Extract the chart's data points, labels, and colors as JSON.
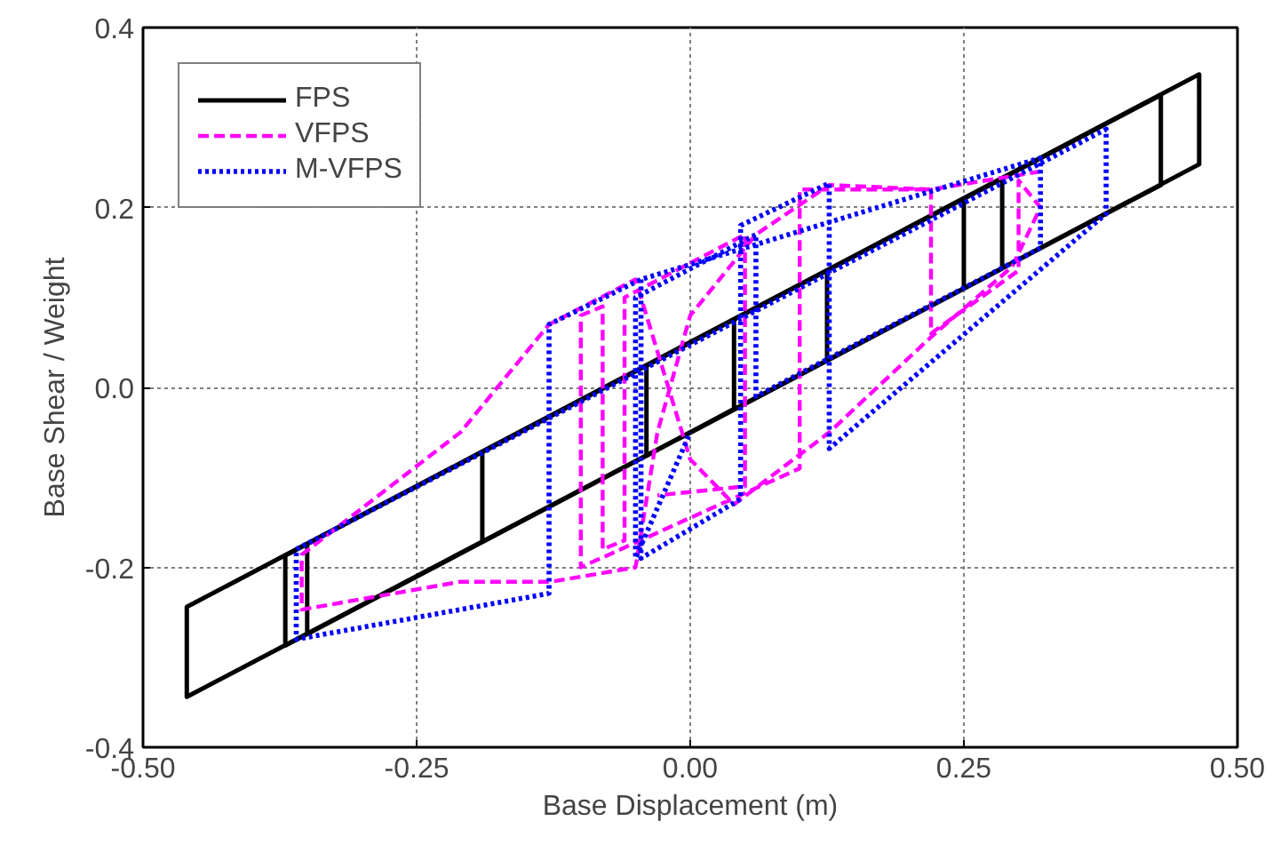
{
  "chart_data": {
    "type": "line",
    "xlabel": "Base Displacement (m)",
    "ylabel": "Base Shear / Weight",
    "xlim": [
      -0.5,
      0.5
    ],
    "ylim": [
      -0.4,
      0.4
    ],
    "xticks": [
      {
        "value": -0.5,
        "label": "-0.50"
      },
      {
        "value": -0.25,
        "label": "-0.25"
      },
      {
        "value": 0,
        "label": "0.00"
      },
      {
        "value": 0.25,
        "label": "0.25"
      },
      {
        "value": 0.5,
        "label": "0.50"
      }
    ],
    "yticks": [
      {
        "value": -0.4,
        "label": "-0.4"
      },
      {
        "value": -0.2,
        "label": "-0.2"
      },
      {
        "value": 0,
        "label": "0.0"
      },
      {
        "value": 0.2,
        "label": "0.2"
      },
      {
        "value": 0.4,
        "label": "0.4"
      }
    ],
    "grid": true,
    "legend": "top left",
    "series": [
      {
        "name": "FPS",
        "color": "#000000",
        "line_style": "solid",
        "x": [
          0,
          0.465,
          0.465,
          -0.46,
          -0.46,
          0.43,
          0.43,
          -0.37,
          -0.37,
          0.285,
          0.285,
          -0.35,
          -0.35,
          0.25,
          0.25,
          -0.19,
          -0.19,
          0.125,
          0.125,
          -0.04,
          -0.04,
          0.04,
          0.04,
          0
        ],
        "values": [
          -0.05,
          0.248,
          0.348,
          -0.244,
          -0.344,
          0.225,
          0.325,
          -0.187,
          -0.287,
          0.132,
          0.232,
          -0.174,
          -0.274,
          0.11,
          0.21,
          -0.072,
          -0.172,
          0.03,
          0.13,
          0.024,
          -0.076,
          -0.024,
          0.076,
          0.05
        ]
      },
      {
        "name": "VFPS",
        "color": "#ff00ff",
        "line_style": "dashed",
        "x": [
          0.32,
          0.22,
          0.127,
          0.06,
          0.0,
          -0.03,
          -0.05,
          -0.127,
          -0.21,
          -0.355,
          -0.355,
          -0.21,
          -0.129,
          -0.05,
          -0.02,
          0.0,
          0.04,
          0.127,
          0.22,
          0.294,
          0.32,
          0.3,
          0.3,
          0.22,
          0.22,
          0.1,
          0.1,
          -0.1,
          -0.1,
          -0.08,
          -0.08,
          -0.06,
          -0.06,
          0.05,
          0.05,
          -0.03
        ],
        "values": [
          0.24,
          0.22,
          0.225,
          0.17,
          0.08,
          -0.05,
          -0.2,
          -0.216,
          -0.216,
          -0.247,
          -0.186,
          -0.05,
          0.07,
          0.12,
          0.0,
          -0.08,
          -0.13,
          -0.05,
          0.056,
          0.134,
          0.2,
          0.23,
          0.13,
          0.06,
          0.22,
          0.22,
          -0.09,
          -0.2,
          0.08,
          0.09,
          -0.18,
          -0.17,
          0.1,
          0.17,
          -0.11,
          -0.12
        ]
      },
      {
        "name": "M-VFPS",
        "color": "#0000ff",
        "line_style": "dotted",
        "x": [
          -0.045,
          -0.045,
          0.046,
          0.046,
          0.127,
          0.127,
          0.38,
          0.38,
          -0.36,
          -0.36,
          -0.129,
          -0.129,
          -0.045,
          0.32,
          0.32,
          0.06,
          0.06,
          -0.05,
          -0.05,
          0.0
        ],
        "values": [
          0.12,
          -0.19,
          -0.124,
          0.18,
          0.227,
          -0.068,
          0.193,
          0.287,
          -0.18,
          -0.28,
          -0.229,
          0.07,
          0.12,
          0.255,
          0.155,
          -0.01,
          0.17,
          0.1,
          -0.19,
          -0.05
        ]
      }
    ]
  }
}
